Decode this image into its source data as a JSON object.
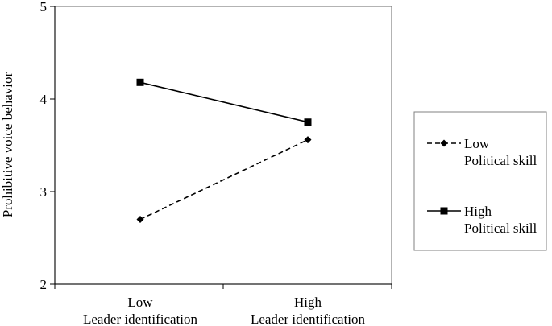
{
  "chart_data": {
    "type": "line",
    "categories": [
      [
        "Low",
        "Leader identification"
      ],
      [
        "High",
        "Leader identification"
      ]
    ],
    "ylabel": "Prohibitive voice behavior",
    "xlabel": "",
    "ylim": [
      2,
      5
    ],
    "yticks": [
      "2",
      "3",
      "4",
      "5"
    ],
    "grid": false,
    "legend_position": "right",
    "series": [
      {
        "name": [
          "Low",
          "Political skill"
        ],
        "values": [
          2.7,
          3.56
        ],
        "line_style": "dashed",
        "marker": "diamond",
        "color": "#000000"
      },
      {
        "name": [
          "High",
          "Political skill"
        ],
        "values": [
          4.18,
          3.75
        ],
        "line_style": "solid",
        "marker": "square",
        "color": "#000000"
      }
    ]
  }
}
